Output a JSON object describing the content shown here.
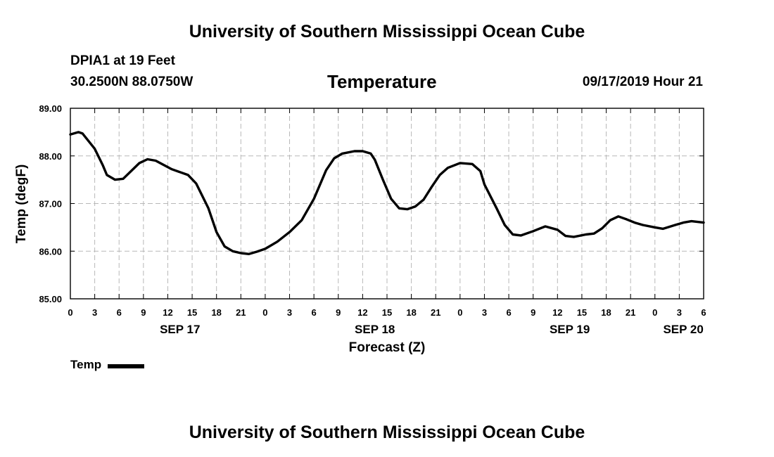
{
  "header": {
    "top_title": "University of Southern Mississippi Ocean Cube",
    "station": "DPIA1 at 19 Feet",
    "location": "30.2500N 88.0750W",
    "datetime": "09/17/2019 Hour 21",
    "bottom_title": "University of Southern Mississippi Ocean Cube"
  },
  "legend": {
    "label": "Temp"
  },
  "chart_data": {
    "type": "line",
    "title": "Temperature",
    "xlabel": "Forecast (Z)",
    "ylabel": "Temp (degF)",
    "ylim": [
      85.0,
      89.0
    ],
    "yticks": [
      "85.00",
      "86.00",
      "87.00",
      "88.00",
      "89.00"
    ],
    "xlim": [
      0,
      78
    ],
    "xtick_hours": [
      0,
      3,
      6,
      9,
      12,
      15,
      18,
      21,
      24,
      27,
      30,
      33,
      36,
      39,
      42,
      45,
      48,
      51,
      54,
      57,
      60,
      63,
      66,
      69,
      72,
      75,
      78
    ],
    "xtick_labels": [
      "0",
      "3",
      "6",
      "9",
      "12",
      "15",
      "18",
      "21",
      "0",
      "3",
      "6",
      "9",
      "12",
      "15",
      "18",
      "21",
      "0",
      "3",
      "6",
      "9",
      "12",
      "15",
      "18",
      "21",
      "0",
      "3",
      "6"
    ],
    "day_labels": [
      {
        "hour": 13.5,
        "label": "SEP 17"
      },
      {
        "hour": 37.5,
        "label": "SEP 18"
      },
      {
        "hour": 61.5,
        "label": "SEP 19"
      },
      {
        "hour": 75.5,
        "label": "SEP 20"
      }
    ],
    "grid": true,
    "series": [
      {
        "name": "Temp",
        "x": [
          0,
          1,
          1.5,
          3,
          4,
          4.5,
          5.5,
          6.5,
          8.5,
          9.5,
          10.5,
          12.5,
          13.5,
          14.5,
          15.5,
          17,
          18,
          19,
          20,
          21,
          22,
          23,
          24,
          25.5,
          27,
          28.5,
          30,
          31.5,
          32.5,
          33.5,
          35,
          36,
          37,
          37.5,
          38.5,
          39.5,
          40.5,
          41.5,
          42.5,
          43.5,
          44.5,
          45.5,
          46.5,
          48,
          49.5,
          50.5,
          51,
          52.5,
          53.5,
          54.5,
          55.5,
          57,
          58.5,
          60,
          61,
          62,
          63.5,
          64.5,
          65.5,
          66.5,
          67.5,
          68.5,
          69.5,
          70.5,
          72,
          73,
          74.5,
          75.5,
          76.5,
          78
        ],
        "values": [
          88.45,
          88.5,
          88.47,
          88.15,
          87.8,
          87.6,
          87.5,
          87.52,
          87.85,
          87.93,
          87.9,
          87.72,
          87.66,
          87.6,
          87.42,
          86.9,
          86.4,
          86.1,
          86.0,
          85.96,
          85.94,
          85.99,
          86.05,
          86.2,
          86.4,
          86.65,
          87.1,
          87.7,
          87.95,
          88.05,
          88.1,
          88.1,
          88.05,
          87.92,
          87.5,
          87.1,
          86.9,
          86.88,
          86.94,
          87.08,
          87.35,
          87.6,
          87.75,
          87.85,
          87.83,
          87.68,
          87.4,
          86.9,
          86.55,
          86.35,
          86.33,
          86.42,
          86.52,
          86.45,
          86.32,
          86.3,
          86.35,
          86.37,
          86.48,
          86.65,
          86.73,
          86.67,
          86.6,
          86.55,
          86.5,
          86.47,
          86.55,
          86.6,
          86.63,
          86.6
        ]
      }
    ]
  }
}
